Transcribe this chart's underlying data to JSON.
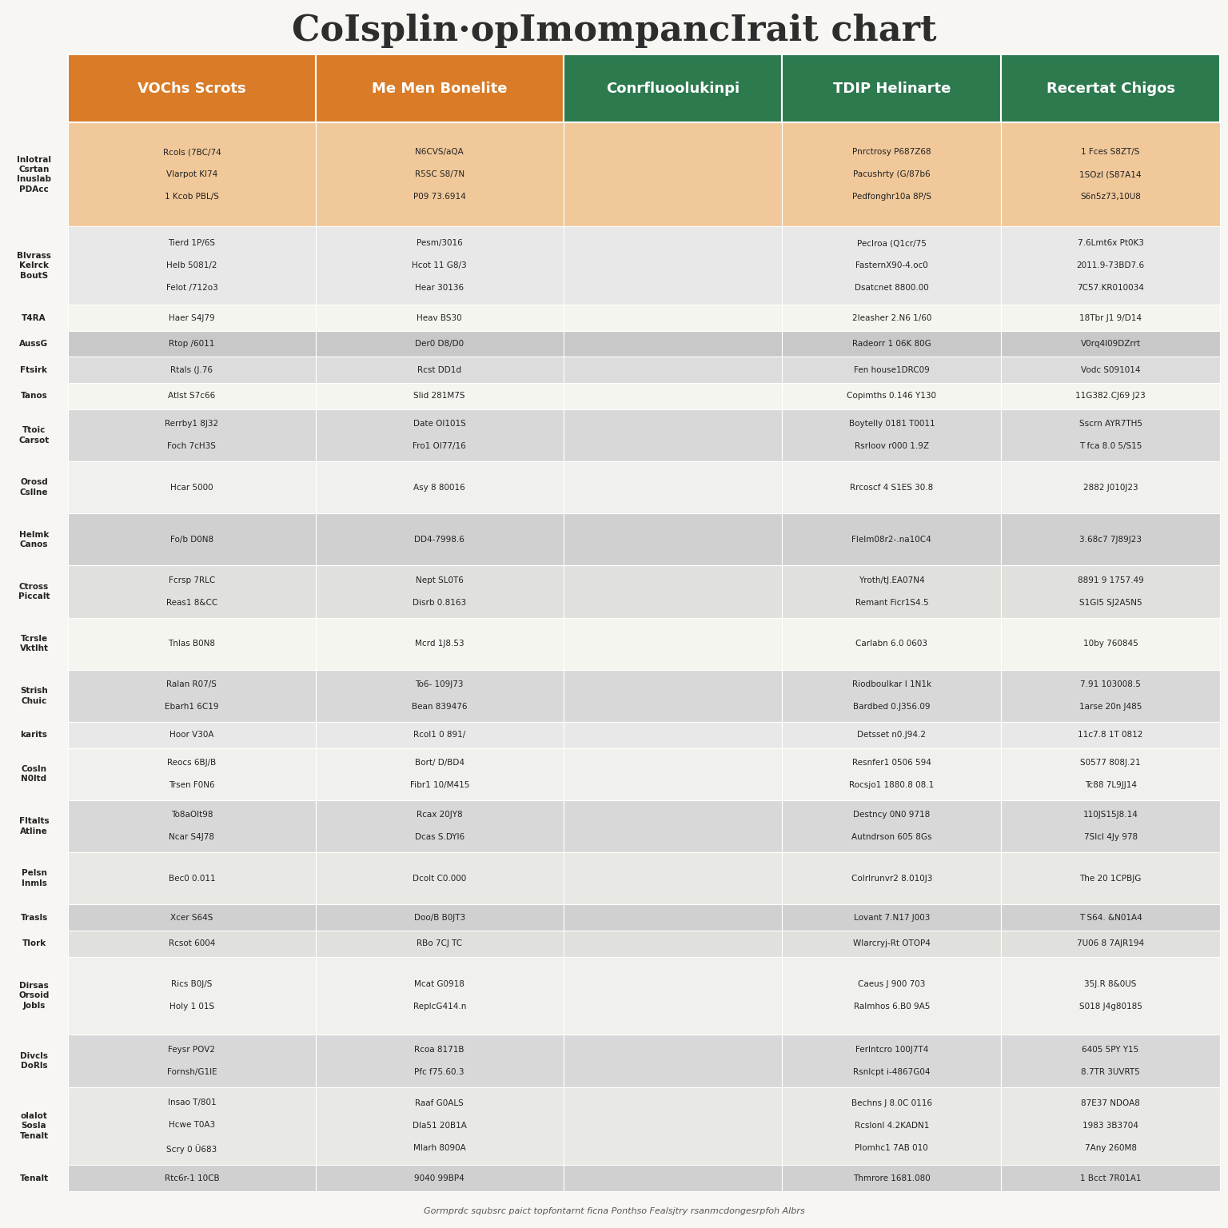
{
  "title": "CoIsplin·opImompancIrait chart",
  "title_color": "#2d2d2d",
  "header_colors": [
    "#d97b27",
    "#d97b27",
    "#2d7a4f",
    "#2d7a4f",
    "#2d7a4f"
  ],
  "header_labels": [
    "VOChs Scrots",
    "Me Men Bonelite",
    "Conrfluoolukinpi",
    "TDIP Helinarte",
    "Recertat Chigos"
  ],
  "rows": [
    {
      "label": "Inlotral\nCsrtan\nInuslab\nPDAcc",
      "nlines": 4,
      "color": "#f0c89a",
      "cols": [
        "Rcols (7BC/74\n\nVlarpot Kl74\n\n1 Kcob PBL/S",
        "N6CVS/aQA\n\nR5SC S8/7N\n\nP09 73.6914",
        "",
        "Pnrctrosy P687Z68\n\nPacushrty (G/87b6\n\nPedfonghr10a 8P/S",
        "1 Fces S8ZT/S\n\n1SOzI (S87A14\n\nS6n5z73,10U8"
      ]
    },
    {
      "label": "Blvrass\nKelrck\nBoutS",
      "nlines": 3,
      "color": "#e8e8e8",
      "cols": [
        "Tierd 1P/6S\n\nHelb 5081/2\n\nFelot /712o3",
        "Pesm/3016\n\nHcot 11 G8/3\n\nHear 30136",
        "",
        "Peclroa (Q1cr/75\n\nFasternX90-4.oc0\n\nDsatcnet 8800.00",
        "7.6Lmt6x Pt0K3\n\n2011.9-73BD7.6\n\n7C57.KR010034"
      ]
    },
    {
      "label": "T4RA",
      "nlines": 1,
      "color": "#f5f5f0",
      "cols": [
        "Haer S4J79",
        "Heav BS30",
        "",
        "2leasher 2.N6 1/60",
        "18Tbr J1 9/D14"
      ]
    },
    {
      "label": "AussG",
      "nlines": 1,
      "color": "#c8c8c8",
      "cols": [
        "Rtop /6011",
        "Der0 D8/D0",
        "",
        "Radeorr 1 06K 80G",
        "V0rq4l09DZrrt"
      ]
    },
    {
      "label": "Ftsirk",
      "nlines": 1,
      "color": "#dcdcdc",
      "cols": [
        "Rtals (J.76",
        "Rcst DD1d",
        "",
        "Fen house1DRC09",
        "Vodc S091014"
      ]
    },
    {
      "label": "Tanos",
      "nlines": 1,
      "color": "#f5f5f0",
      "cols": [
        "Atlst S7c66",
        "Slid 281M7S",
        "",
        "Copimths 0.146 Y130",
        "11G382.CJ69 J23"
      ]
    },
    {
      "label": "Ttoic\nCarsot",
      "nlines": 2,
      "color": "#d8d8d8",
      "cols": [
        "Rerrby1 8J32\n\nFoch 7cH3S",
        "Date Ol101S\n\nFro1 Ol77/16",
        "",
        "Boytelly 0181 T0011\n\nRsrloov r000 1.9Z",
        "Sscrn AYR7TH5\n\nT fca 8.0 5/S15"
      ]
    },
    {
      "label": "Orosd\nCsllne",
      "nlines": 2,
      "color": "#f0f0ec",
      "cols": [
        "Hcar 5000",
        "Asy 8 80016",
        "",
        "Rrcoscf 4 S1ES 30.8",
        "2882 J010J23"
      ]
    },
    {
      "label": "Helmk\nCanos",
      "nlines": 2,
      "color": "#d0d0d0",
      "cols": [
        "Fo/b D0N8",
        "DD4-7998.6",
        "",
        "Flelm08r2-.na10C4",
        "3.68c7 7J89J23"
      ]
    },
    {
      "label": "Ctross\nPiccalt",
      "nlines": 2,
      "color": "#e0e0dc",
      "cols": [
        "Fcrsp 7RLC\n\nReas1 8&CC",
        "Nept SL0T6\n\nDisrb 0.8163",
        "",
        "Yroth/tJ.EA07N4\n\nRemant Ficr1S4.5",
        "8891 9 1757.49\n\nS1Gl5 SJ2A5N5"
      ]
    },
    {
      "label": "Tcrsle\nVktlht",
      "nlines": 2,
      "color": "#f5f5f0",
      "cols": [
        "Tnlas B0N8",
        "Mcrd 1J8.53",
        "",
        "Carlabn 6.0 0603",
        "10by 760845"
      ]
    },
    {
      "label": "Strish\nChuic",
      "nlines": 2,
      "color": "#d8d8d8",
      "cols": [
        "Ralan R07/S\n\nEbarh1 6C19",
        "To6- 109J73\n\nBean 839476",
        "",
        "Riodboulkar l 1N1k\n\nBardbed 0.J356.09",
        "7.91 103008.5\n\n1arse 20n J485"
      ]
    },
    {
      "label": "karits",
      "nlines": 1,
      "color": "#e8e8e8",
      "cols": [
        "Hoor V30A",
        "Rcol1 0 891/",
        "",
        "Detsset n0.J94.2",
        "11c7.8 1T 0812"
      ]
    },
    {
      "label": "Cosln\nN0ltd",
      "nlines": 2,
      "color": "#f0f0ec",
      "cols": [
        "Reocs 6BJ/B\n\nTrsen F0N6",
        "Bort/ D/BD4\n\nFibr1 10/M415",
        "",
        "Resnfer1 0506 594\n\nRocsjo1 1880.8 08.1",
        "S0577 808J.21\n\nTc88 7L9JJ14"
      ]
    },
    {
      "label": "Fltalts\nAtline",
      "nlines": 2,
      "color": "#d8d8d8",
      "cols": [
        "To8aOlt98\n\nNcar S4J78",
        "Rcax 20JY8\n\nDcas S.DYl6",
        "",
        "Destncy 0N0 9718\n\nAutndrson 605 8Gs",
        "110JS15J8.14\n\n7Slcl 4Jy 978"
      ]
    },
    {
      "label": "Pelsn\nInmls",
      "nlines": 2,
      "color": "#e8e8e4",
      "cols": [
        "Bec0 0.011",
        "Dcolt C0.000",
        "",
        "Colrlrunvr2 8.010J3",
        "The 20 1CPBJG"
      ]
    },
    {
      "label": "Trasls",
      "nlines": 1,
      "color": "#d0d0d0",
      "cols": [
        "Xcer S64S",
        "Doo/B B0JT3",
        "",
        "Lovant 7.N17 J003",
        "T S64. &N01A4"
      ]
    },
    {
      "label": "Tlork",
      "nlines": 1,
      "color": "#e0e0dc",
      "cols": [
        "Rcsot 6004",
        "RBo 7CJ TC",
        "",
        "Wlarcryj-Rt OTOP4",
        "7U06 8 7AJR194"
      ]
    },
    {
      "label": "Dirsas\nOrsoid\nJobls",
      "nlines": 3,
      "color": "#f0f0ec",
      "cols": [
        "Rics B0J/S\n\nHoly 1 01S",
        "Mcat G0918\n\nReplcG414.n",
        "",
        "Caeus J 900 703\n\nRalmhos 6.B0 9A5",
        "35J.R 8&0US\n\nS018 J4g80185"
      ]
    },
    {
      "label": "Divcls\nDoRls",
      "nlines": 2,
      "color": "#d8d8d8",
      "cols": [
        "Feysr POV2\n\nFornsh/G1lE",
        "Rcoa 8171B\n\nPfc f75.60.3",
        "",
        "Ferlntcro 100J7T4\n\nRsnlcpt i-4867G04",
        "6405 5PY Y15\n\n8.7TR 3UVRT5"
      ]
    },
    {
      "label": "olalot\nSosla\nTenalt",
      "nlines": 3,
      "color": "#e8e8e4",
      "cols": [
        "Insao T/801\n\nHcwe T0A3\n\nScry 0 Ü683",
        "Raaf G0ALS\n\nDla51 20B1A\n\nMlarh 8090A",
        "",
        "Bechns J 8.0C 0116\n\nRcslonl 4.2KADN1\n\nPlomhc1 7AB 010",
        "87E37 NDOA8\n\n1983 3B3704\n\n7Any 260M8"
      ]
    },
    {
      "label": "Tenalt",
      "nlines": 1,
      "color": "#d0d0d0",
      "cols": [
        "Rtc6r-1 10CB",
        "9040 99BP4",
        "",
        "Thmrore 1681.080",
        "1 Bcct 7R01A1"
      ]
    }
  ],
  "footer_text": "Gormprdc squbsrc paict topfontarnt ficna Ponthso Fealsjtry rsanmcdongesrpfoh Albrs",
  "bg_color": "#f8f6f2"
}
